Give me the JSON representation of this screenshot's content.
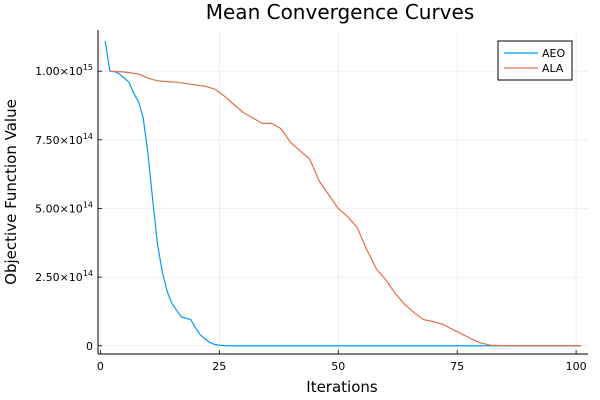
{
  "chart_data": {
    "type": "line",
    "title": "Mean Convergence Curves",
    "xlabel": "Iterations",
    "ylabel": "Objective Function Value",
    "xlim": [
      -0.5,
      102.5
    ],
    "ylim": [
      -30000000000000.0,
      1150000000000000.0
    ],
    "grid": true,
    "legend_position": "top-right",
    "x_ticks": [
      {
        "value": 0,
        "label": "0"
      },
      {
        "value": 25,
        "label": "25"
      },
      {
        "value": 50,
        "label": "50"
      },
      {
        "value": 75,
        "label": "75"
      },
      {
        "value": 100,
        "label": "100"
      }
    ],
    "y_ticks": [
      {
        "value": 0,
        "mantissa": "0",
        "exponent": ""
      },
      {
        "value": 250000000000000.0,
        "mantissa": "2.50×10",
        "exponent": "14"
      },
      {
        "value": 500000000000000.0,
        "mantissa": "5.00×10",
        "exponent": "14"
      },
      {
        "value": 750000000000000.0,
        "mantissa": "7.50×10",
        "exponent": "14"
      },
      {
        "value": 1000000000000000.0,
        "mantissa": "1.00×10",
        "exponent": "15"
      }
    ],
    "series": [
      {
        "name": "AEO",
        "color": "#009AFA",
        "x": [
          1,
          2,
          3,
          4,
          5,
          6,
          7,
          8,
          9,
          10,
          11,
          12,
          13,
          14,
          15,
          16,
          17,
          18,
          19,
          20,
          21,
          22,
          23,
          24,
          25,
          26,
          27,
          30,
          40,
          50,
          60,
          70,
          80,
          90,
          101
        ],
        "y": [
          1110000000000000.0,
          1000000000000000.0,
          998000000000000.0,
          990000000000000.0,
          975000000000000.0,
          960000000000000.0,
          920000000000000.0,
          890000000000000.0,
          830000000000000.0,
          700000000000000.0,
          530000000000000.0,
          370000000000000.0,
          270000000000000.0,
          200000000000000.0,
          155000000000000.0,
          130000000000000.0,
          105000000000000.0,
          100000000000000.0,
          95000000000000.0,
          65000000000000.0,
          40000000000000.0,
          25000000000000.0,
          12000000000000.0,
          5000000000000.0,
          2000000000000.0,
          500000000000.0,
          0,
          0,
          0,
          0,
          0,
          0,
          0,
          0,
          0
        ]
      },
      {
        "name": "ALA",
        "color": "#E26F46",
        "x": [
          2,
          5,
          8,
          10,
          12,
          14,
          16,
          18,
          20,
          22,
          24,
          26,
          28,
          30,
          32,
          34,
          36,
          38,
          40,
          42,
          44,
          46,
          48,
          50,
          52,
          54,
          56,
          58,
          60,
          62,
          64,
          66,
          68,
          70,
          72,
          74,
          76,
          78,
          80,
          82,
          85,
          90,
          95,
          101
        ],
        "y": [
          1000000000000000.0,
          997000000000000.0,
          990000000000000.0,
          975000000000000.0,
          965000000000000.0,
          962000000000000.0,
          960000000000000.0,
          955000000000000.0,
          950000000000000.0,
          945000000000000.0,
          935000000000000.0,
          910000000000000.0,
          880000000000000.0,
          850000000000000.0,
          830000000000000.0,
          810000000000000.0,
          810000000000000.0,
          790000000000000.0,
          740000000000000.0,
          710000000000000.0,
          680000000000000.0,
          600000000000000.0,
          550000000000000.0,
          500000000000000.0,
          470000000000000.0,
          430000000000000.0,
          350000000000000.0,
          280000000000000.0,
          240000000000000.0,
          190000000000000.0,
          150000000000000.0,
          120000000000000.0,
          95000000000000.0,
          88000000000000.0,
          78000000000000.0,
          60000000000000.0,
          43000000000000.0,
          25000000000000.0,
          10000000000000.0,
          2000000000000.0,
          0,
          0,
          0,
          0
        ]
      }
    ]
  }
}
